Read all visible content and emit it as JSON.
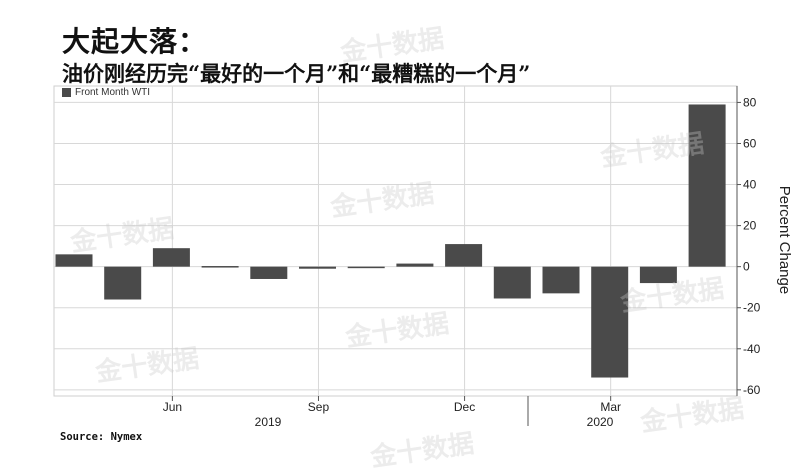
{
  "title": "大起大落：",
  "subtitle": "油价刚经历完“最好的一个月”和“最糟糕的一个月”",
  "source": "Source: Nymex",
  "watermark_text": "金十数据",
  "colors": {
    "bar": "#4a4a4a",
    "grid": "#d8d8d8",
    "axis": "#555555"
  },
  "chart_data": {
    "type": "bar",
    "legend": [
      "Front Month WTI"
    ],
    "legend_position": "top-left",
    "ylabel": "Percent Change",
    "ylim": [
      -63,
      88
    ],
    "y_axis_side": "right",
    "y_ticks": [
      "80",
      "60",
      "40",
      "20",
      "0",
      "-20",
      "-40",
      "-60"
    ],
    "grid": true,
    "categories": [
      "2019-04",
      "2019-05",
      "2019-06",
      "2019-07",
      "2019-08",
      "2019-09",
      "2019-10",
      "2019-11",
      "2019-12",
      "2020-01",
      "2020-02",
      "2020-03",
      "2020-04",
      "2020-05"
    ],
    "series": [
      {
        "name": "Front Month WTI",
        "values": [
          6,
          -16,
          9,
          0.3,
          -6,
          -1,
          -0.2,
          1.5,
          11,
          -15.5,
          -13,
          -54,
          -8,
          79
        ]
      }
    ],
    "x_month_labels": [
      "Jun",
      "Sep",
      "Dec",
      "Mar"
    ],
    "x_year_labels": [
      "2019",
      "2020"
    ]
  }
}
